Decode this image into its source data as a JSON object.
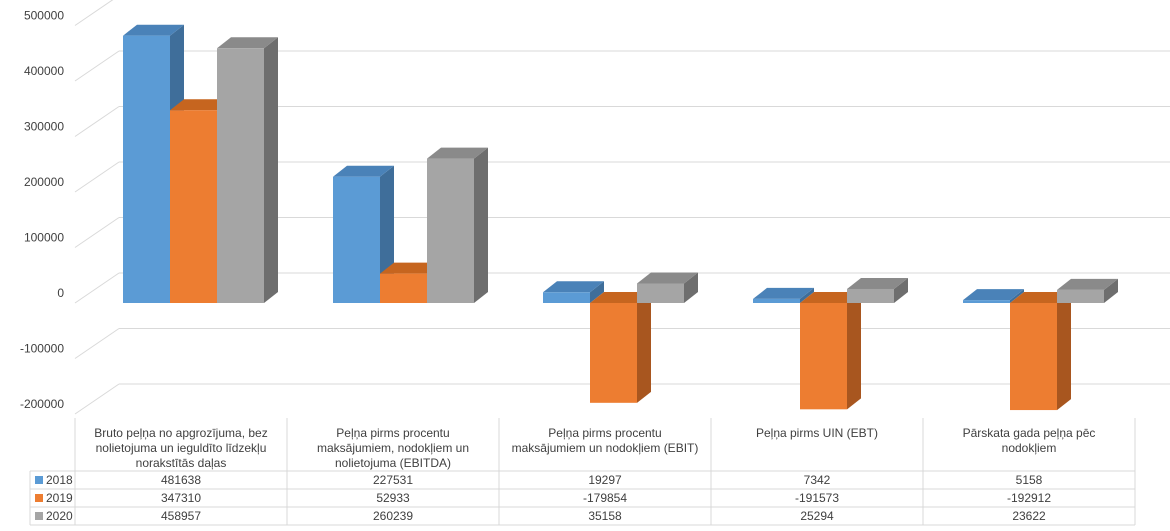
{
  "chart_data": {
    "type": "bar",
    "categories": [
      [
        "Bruto peļņa no apgrozījuma, bez",
        "nolietojuma un ieguldīto līdzekļu",
        "norakstītās daļas"
      ],
      [
        "Peļņa pirms procentu",
        "maksājumiem, nodokļiem un",
        "nolietojuma (EBITDA)"
      ],
      [
        "Peļņa pirms procentu",
        "maksājumiem un nodokļiem (EBIT)"
      ],
      [
        "Peļņa pirms UIN (EBT)"
      ],
      [
        "Pārskata gada peļņa  pēc",
        "nodokļiem"
      ]
    ],
    "series": [
      {
        "name": "2018",
        "values": [
          481638,
          227531,
          19297,
          7342,
          5158
        ]
      },
      {
        "name": "2019",
        "values": [
          347310,
          52933,
          -179854,
          -191573,
          -192912
        ]
      },
      {
        "name": "2020",
        "values": [
          458957,
          260239,
          35158,
          25294,
          23622
        ]
      }
    ],
    "colors": {
      "2018": {
        "front": "#5B9BD5",
        "side": "#3F6E9A",
        "top": "#4A82B8"
      },
      "2019": {
        "front": "#ED7D31",
        "side": "#A8561F",
        "top": "#C6651F"
      },
      "2020": {
        "front": "#A5A5A5",
        "side": "#6E6E6E",
        "top": "#8A8A8A"
      }
    },
    "yticks": [
      "500000",
      "400000",
      "300000",
      "200000",
      "100000",
      "0",
      "-100000",
      "-200000"
    ],
    "ylim": [
      -200000,
      500000
    ],
    "grid": true,
    "legend": "data-table",
    "three_d": true
  }
}
